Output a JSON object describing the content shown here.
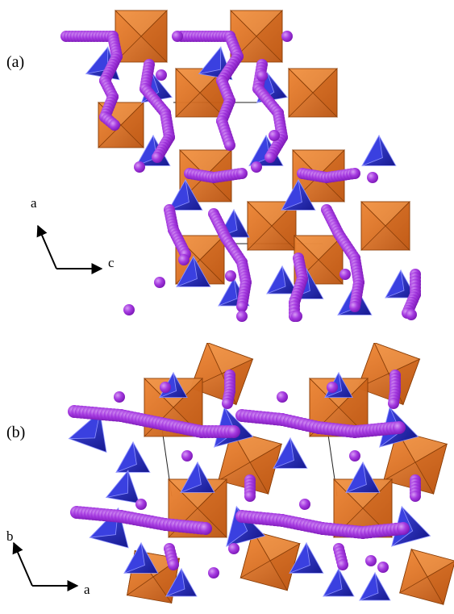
{
  "panels": [
    {
      "id": "a",
      "label": "(a)",
      "axes": {
        "up": "a",
        "right": "c"
      }
    },
    {
      "id": "b",
      "label": "(b)",
      "axes": {
        "up": "b",
        "right": "a"
      }
    }
  ],
  "colors": {
    "octahedron": "#e0701f",
    "octahedron_dark": "#b9520f",
    "tetrahedron": "#2a2fd0",
    "tetrahedron_dark": "#16198e",
    "chain": "#a53ae0",
    "chain_dark": "#7a17b4",
    "chain_light": "#d79af5"
  }
}
